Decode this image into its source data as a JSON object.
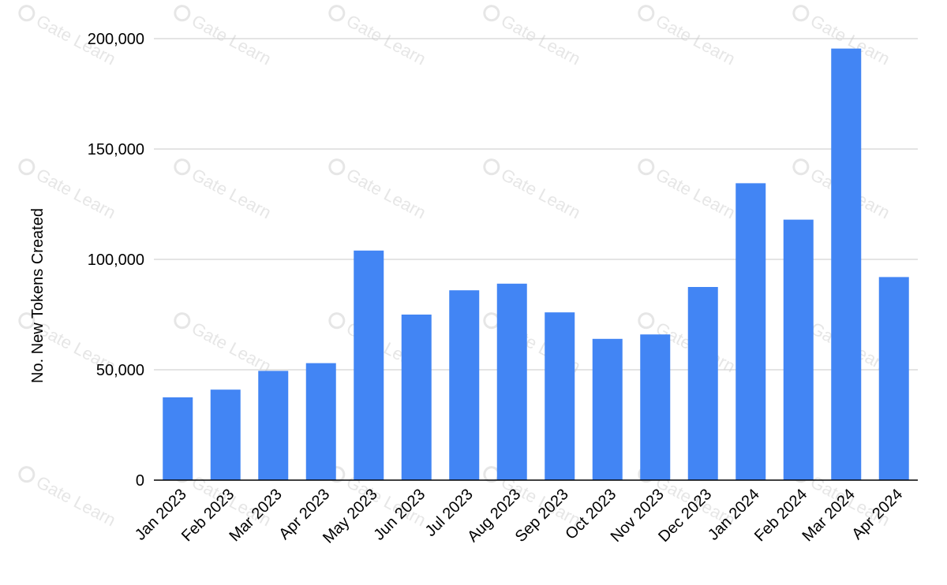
{
  "chart_data": {
    "type": "bar",
    "categories": [
      "Jan 2023",
      "Feb 2023",
      "Mar 2023",
      "Apr 2023",
      "May 2023",
      "Jun 2023",
      "Jul 2023",
      "Aug 2023",
      "Sep 2023",
      "Oct 2023",
      "Nov 2023",
      "Dec 2023",
      "Jan 2024",
      "Feb 2024",
      "Mar 2024",
      "Apr 2024"
    ],
    "values": [
      37500,
      41000,
      49500,
      53000,
      104000,
      75000,
      86000,
      89000,
      76000,
      64000,
      66000,
      87500,
      134500,
      118000,
      195500,
      92000
    ],
    "ylabel": "No. New Tokens Created",
    "ylim": [
      0,
      200000
    ],
    "yticks": [
      0,
      50000,
      100000,
      150000,
      200000
    ],
    "ytick_labels": [
      "0",
      "50,000",
      "100,000",
      "150,000",
      "200,000"
    ],
    "grid": true,
    "bar_color": "#4285f4",
    "grid_color": "#c8c8c8",
    "axis_color": "#000000"
  },
  "watermark": {
    "text": "Gate Learn",
    "color": "#e6e6e6"
  }
}
